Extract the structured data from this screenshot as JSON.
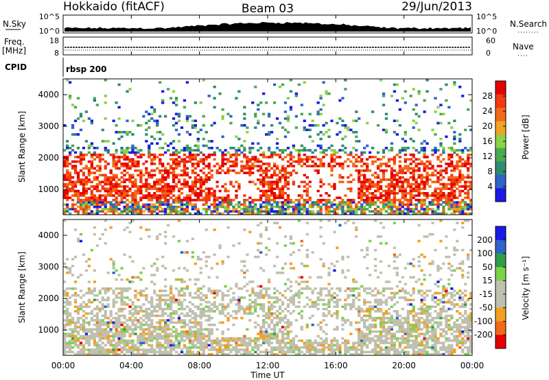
{
  "header": {
    "station": "Hokkaido (fitACF)",
    "beam": "Beam 03",
    "date": "29/Jun/2013"
  },
  "noise_panel": {
    "left_label": "N.Sky",
    "right_label": "N.Search",
    "left_ticks": [
      "10^5",
      "10^0"
    ],
    "right_ticks": [
      "10^5",
      "10^0"
    ]
  },
  "freq_panel": {
    "left_label": "Freq.",
    "left_unit": "[MHz]",
    "left_ticks": [
      "18",
      "8"
    ],
    "right_label": "Nave",
    "right_ticks": [
      "60",
      "0"
    ],
    "cpid_label": "CPID",
    "cpid_value": "rbsp 200"
  },
  "colors": {
    "power_scale": [
      "#1a1ae6",
      "#2f63c9",
      "#2e8c6f",
      "#4ca850",
      "#8cd248",
      "#f2a420",
      "#f26a18",
      "#f23a10",
      "#e60000"
    ],
    "velocity_scale": [
      "#1a1ae6",
      "#2f63c9",
      "#2f9c4a",
      "#7ad34a",
      "#c0c0b0",
      "#c0c0b0",
      "#f2a020",
      "#f26a18",
      "#e60000"
    ]
  },
  "chart_data": [
    {
      "type": "heatmap",
      "name": "power",
      "ylabel": "Slant Range [km]",
      "xlim": [
        0,
        24
      ],
      "ylim": [
        200,
        4500
      ],
      "yticks": [
        1000,
        2000,
        3000,
        4000
      ],
      "colorbar_label": "Power [dB]",
      "colorbar_ticks": [
        4,
        8,
        12,
        16,
        20,
        24,
        28
      ],
      "colorbar_range": [
        0,
        32
      ]
    },
    {
      "type": "heatmap",
      "name": "velocity",
      "ylabel": "Slant Range [km]",
      "xlim": [
        0,
        24
      ],
      "ylim": [
        200,
        4500
      ],
      "yticks": [
        1000,
        2000,
        3000,
        4000
      ],
      "colorbar_label": "Velocity [m s⁻¹]",
      "colorbar_ticks": [
        200,
        100,
        50,
        15,
        -15,
        -50,
        -100,
        -200
      ]
    }
  ],
  "x_axis": {
    "label": "Time UT",
    "ticks": [
      "00:00",
      "04:00",
      "08:00",
      "12:00",
      "16:00",
      "20:00",
      "00:00"
    ]
  }
}
